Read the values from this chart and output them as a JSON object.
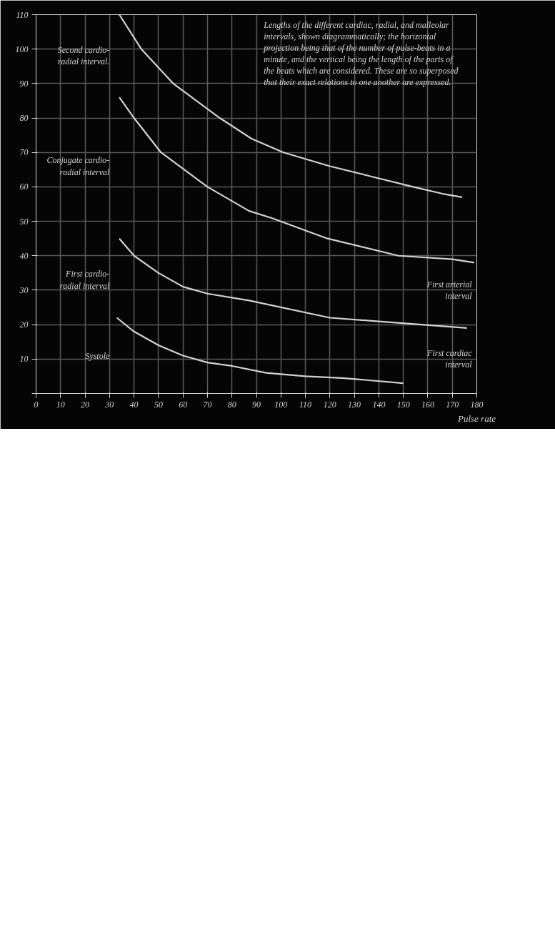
{
  "chart_data": {
    "type": "line",
    "xlabel": "Pulse rate",
    "xlim": [
      0,
      180
    ],
    "ylim": [
      0,
      110
    ],
    "xticks": [
      0,
      10,
      20,
      30,
      40,
      50,
      60,
      70,
      80,
      90,
      100,
      110,
      120,
      130,
      140,
      150,
      160,
      170,
      180
    ],
    "yticks": [
      {
        "value": 0,
        "label": null
      },
      10,
      20,
      30,
      40,
      50,
      60,
      70,
      80,
      90,
      100,
      110
    ],
    "grid": true,
    "marker": "none",
    "line_style": "solid",
    "series": [
      {
        "color": "#d2d2d2",
        "x": [
          34,
          43,
          56,
          75,
          88,
          101,
          120,
          137,
          154,
          166,
          174
        ],
        "values": [
          110,
          100,
          90,
          80,
          74,
          70,
          66,
          63,
          60,
          58,
          57
        ]
      },
      {
        "color": "#d2d2d2",
        "x": [
          34,
          40,
          51,
          70,
          87,
          96,
          119,
          148,
          170,
          179
        ],
        "values": [
          86,
          80,
          70,
          60,
          53,
          51,
          45,
          40,
          39,
          38
        ]
      },
      {
        "color": "#d2d2d2",
        "x": [
          34,
          40,
          50,
          60,
          70,
          87,
          120,
          139,
          176
        ],
        "values": [
          45,
          40,
          35,
          31,
          29,
          27,
          22,
          21,
          19
        ]
      },
      {
        "color": "#d2d2d2",
        "x": [
          33,
          40,
          50,
          60,
          70,
          80,
          94,
          110,
          125,
          150
        ],
        "values": [
          22,
          18,
          14,
          11,
          9,
          8,
          6,
          5,
          4.5,
          3
        ]
      }
    ],
    "annotations": [
      "Lengths of the different cardiac, radial, and malleolar intervals, shown diagrammatically; the horizontal projection being that of the number of pulse-beats in a minute, and the vertical being the length of the parts of the beats which are considered. These are so superposed that their exact relations to one another are expressed.",
      "Second cardio-radial interval.",
      "Conjugate cardio-radial interval",
      "First cardio-radial interval",
      "Systole",
      "First arterial interval",
      "First cardiac interval"
    ]
  }
}
